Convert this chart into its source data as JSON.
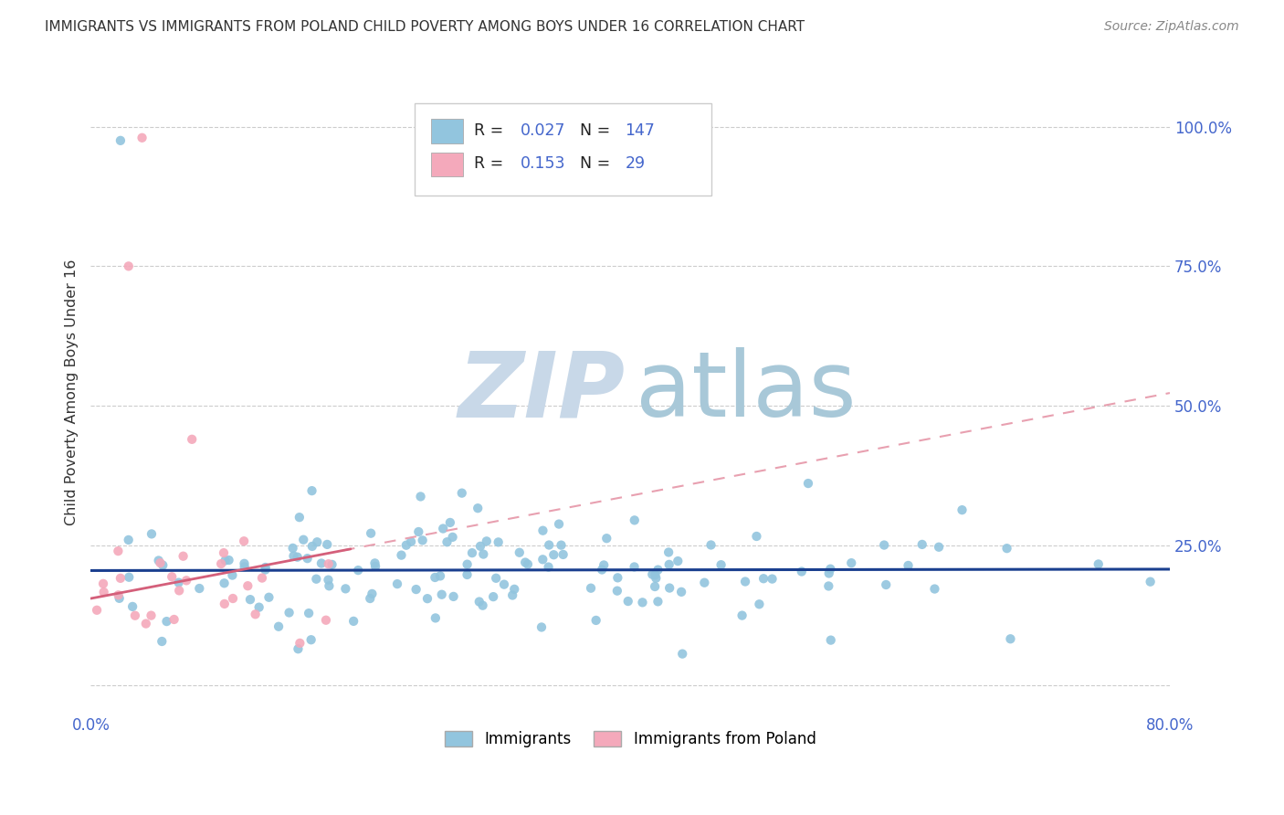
{
  "title": "IMMIGRANTS VS IMMIGRANTS FROM POLAND CHILD POVERTY AMONG BOYS UNDER 16 CORRELATION CHART",
  "source": "Source: ZipAtlas.com",
  "ylabel": "Child Poverty Among Boys Under 16",
  "xlim": [
    0.0,
    0.8
  ],
  "ylim": [
    -0.05,
    1.1
  ],
  "blue_R": 0.027,
  "blue_N": 147,
  "pink_R": 0.153,
  "pink_N": 29,
  "blue_color": "#92C5DE",
  "pink_color": "#F4A9BB",
  "blue_line_color": "#1A3F8F",
  "pink_line_solid_color": "#D45F7A",
  "pink_line_dash_color": "#E8A0B0",
  "watermark_zip_color": "#C8D8E8",
  "watermark_atlas_color": "#A8C8D8",
  "grid_color": "#CCCCCC",
  "tick_label_color": "#4466CC",
  "ylabel_color": "#333333",
  "title_color": "#333333",
  "source_color": "#888888",
  "legend_border_color": "#CCCCCC"
}
